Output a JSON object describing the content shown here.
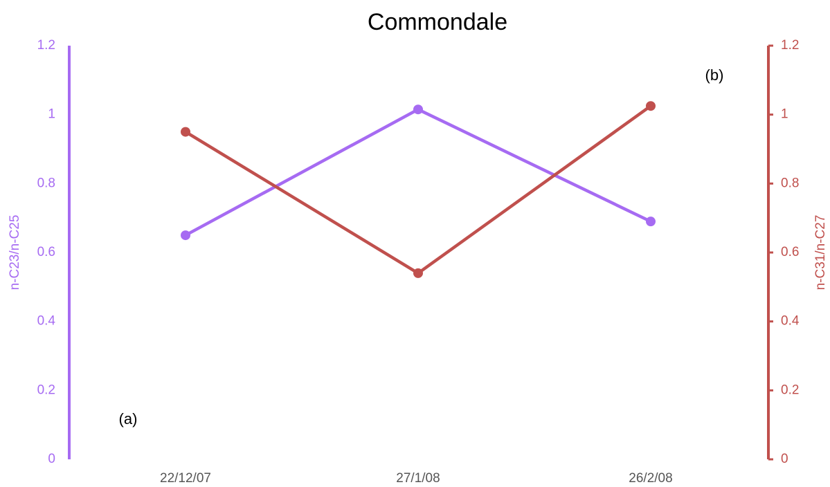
{
  "chart_data": {
    "type": "line",
    "title": "Commondale",
    "categories": [
      "22/12/07",
      "27/1/08",
      "26/2/08"
    ],
    "series": [
      {
        "name": "n-C23/n-C25",
        "color": "#a66bf2",
        "values": [
          0.65,
          1.015,
          0.69
        ]
      },
      {
        "name": "n-C31/n-C27",
        "color": "#c0504d",
        "values": [
          0.95,
          0.54,
          1.025
        ],
        "axis": "y2"
      }
    ],
    "ylabel": "n-C23/n-C25",
    "y2label": "n-C31/n-C27",
    "ylim": [
      0,
      1.2
    ],
    "yticks": [
      0,
      0.2,
      0.4,
      0.6,
      0.8,
      1,
      1.2
    ],
    "y2lim": [
      0,
      1.2
    ],
    "y2ticks": [
      0,
      0.2,
      0.4,
      0.6,
      0.8,
      1,
      1.2
    ],
    "annotations": [
      "(a)",
      "(b)"
    ]
  }
}
